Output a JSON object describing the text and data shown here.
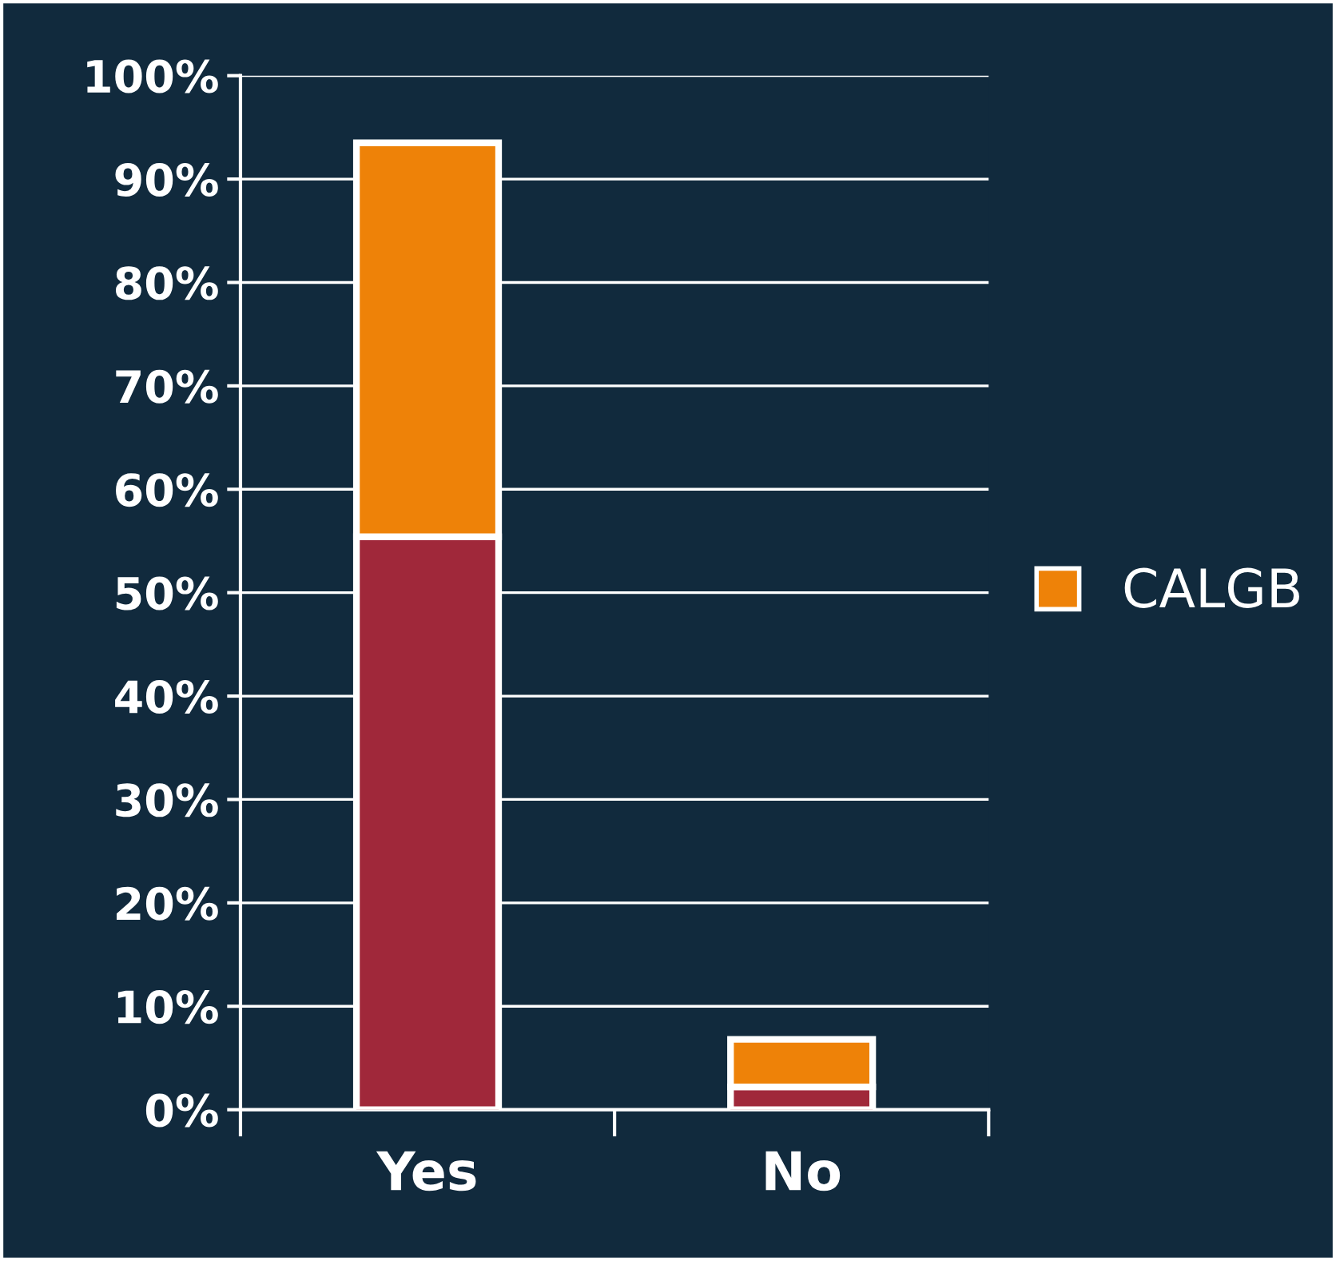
{
  "chart_data": {
    "type": "bar",
    "stacked": true,
    "categories": [
      "Yes",
      "No"
    ],
    "series": [
      {
        "color": "#a0283a",
        "values": [
          55.4,
          2.2
        ]
      },
      {
        "name": "CALGB",
        "color": "#ee8208",
        "values": [
          38.1,
          4.6
        ]
      }
    ],
    "ylim": [
      0,
      100
    ],
    "yticks": [
      {
        "value": 0,
        "label": "0%"
      },
      {
        "value": 10,
        "label": "10%"
      },
      {
        "value": 20,
        "label": "20%"
      },
      {
        "value": 30,
        "label": "30%"
      },
      {
        "value": 40,
        "label": "40%"
      },
      {
        "value": 50,
        "label": "50%"
      },
      {
        "value": 60,
        "label": "60%"
      },
      {
        "value": 70,
        "label": "70%"
      },
      {
        "value": 80,
        "label": "80%"
      },
      {
        "value": 90,
        "label": "90%"
      },
      {
        "value": 100,
        "label": "100%"
      }
    ],
    "grid": "y",
    "legend": "right"
  }
}
